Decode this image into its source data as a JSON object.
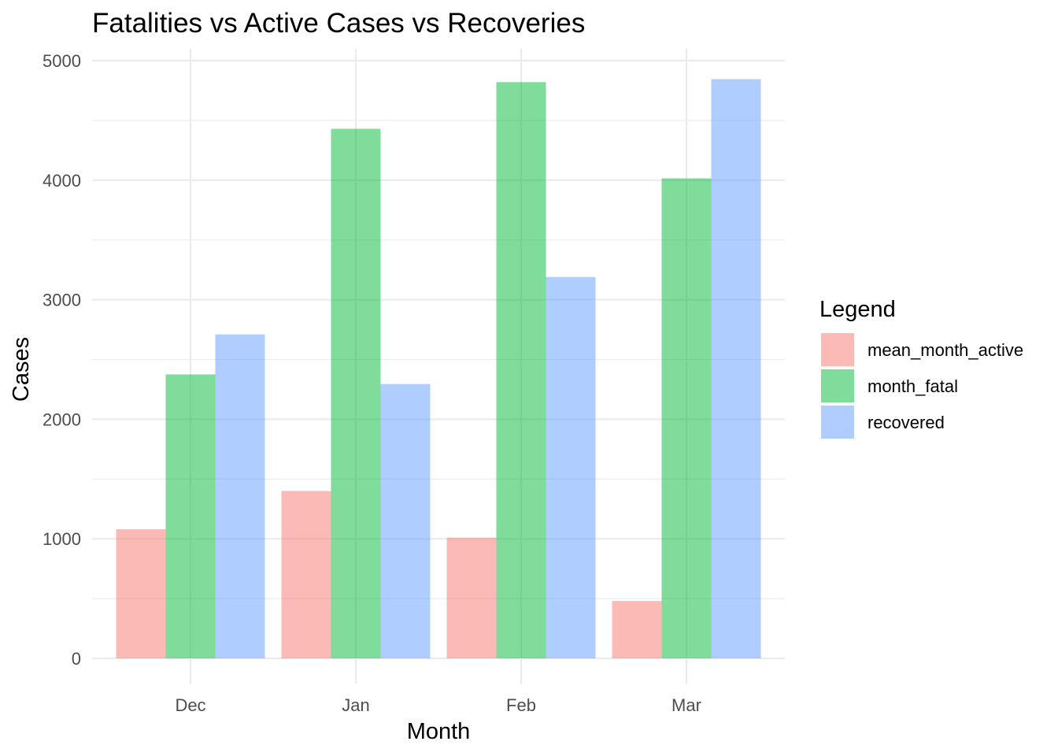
{
  "chart_data": {
    "type": "bar",
    "title": "Fatalities vs Active Cases vs Recoveries",
    "xlabel": "Month",
    "ylabel": "Cases",
    "categories": [
      "Dec",
      "Jan",
      "Feb",
      "Mar"
    ],
    "series": [
      {
        "name": "mean_month_active",
        "color": "#F8766D",
        "values": [
          1080,
          1400,
          1010,
          480
        ]
      },
      {
        "name": "month_fatal",
        "color": "#00BA38",
        "values": [
          2375,
          4430,
          4820,
          4015
        ]
      },
      {
        "name": "recovered",
        "color": "#619CFF",
        "values": [
          2710,
          2295,
          3190,
          4845
        ]
      }
    ],
    "ylim": [
      0,
      5000
    ],
    "yticks": [
      0,
      1000,
      2000,
      3000,
      4000,
      5000
    ],
    "ytick_labels": [
      "0",
      "1000",
      "2000",
      "3000",
      "4000",
      "5000"
    ],
    "bar_opacity": 0.5,
    "grid": true,
    "legend": {
      "title": "Legend",
      "placement": "right"
    }
  }
}
